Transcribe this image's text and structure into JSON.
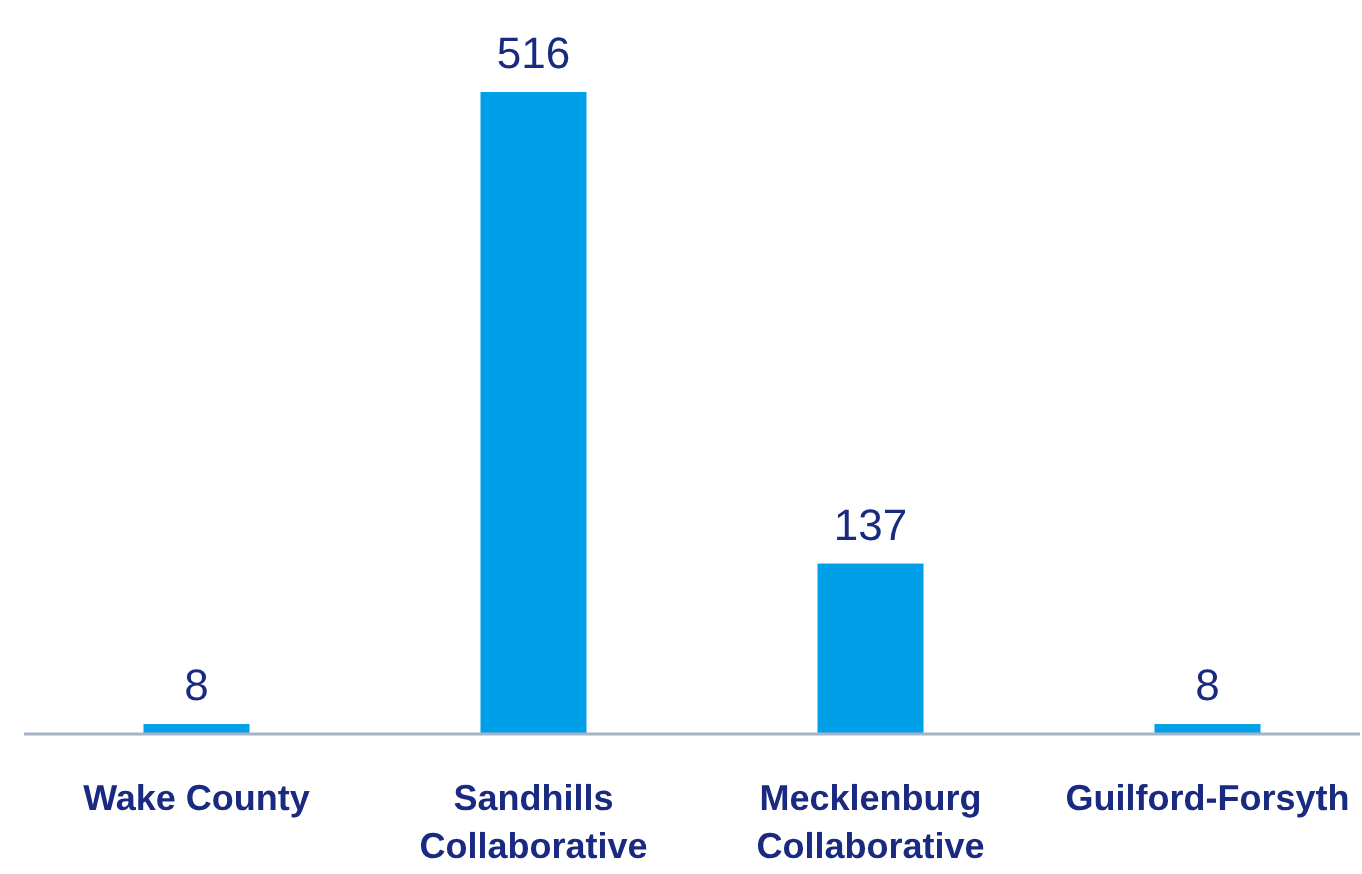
{
  "chart_data": {
    "type": "bar",
    "categories": [
      "Wake County",
      "Sandhills Collaborative",
      "Mecklenburg Collaborative",
      "Guilford-Forsyth"
    ],
    "values": [
      8,
      516,
      137,
      8
    ],
    "color": "#00a0e9",
    "data_labels": true
  }
}
